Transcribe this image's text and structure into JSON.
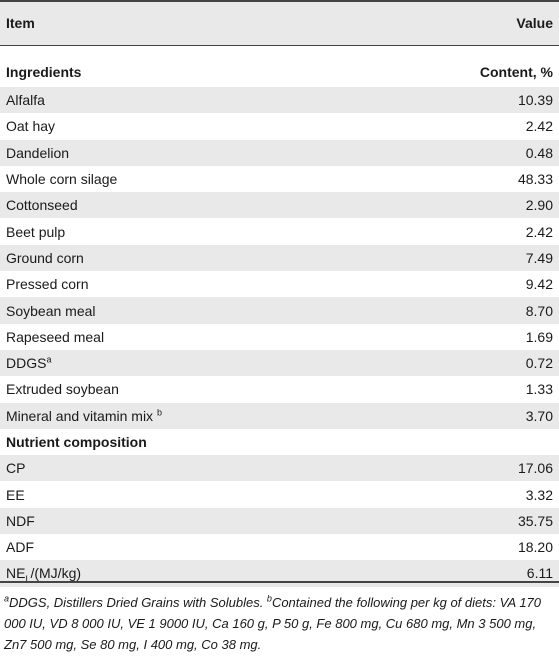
{
  "header": {
    "item": "Item",
    "value": "Value"
  },
  "sections": [
    {
      "title": "Ingredients",
      "value_header": "Content, %",
      "rows": [
        {
          "label": "Alfalfa",
          "value": "10.39"
        },
        {
          "label": "Oat hay",
          "value": "2.42"
        },
        {
          "label": "Dandelion",
          "value": "0.48"
        },
        {
          "label": "Whole corn silage",
          "value": "48.33"
        },
        {
          "label": "Cottonseed",
          "value": "2.90"
        },
        {
          "label": "Beet pulp",
          "value": "2.42"
        },
        {
          "label": "Ground corn",
          "value": "7.49"
        },
        {
          "label": "Pressed corn",
          "value": "9.42"
        },
        {
          "label": "Soybean meal",
          "value": "8.70"
        },
        {
          "label": "Rapeseed meal",
          "value": "1.69"
        },
        {
          "label": "DDGS",
          "sup": "a",
          "value": "0.72"
        },
        {
          "label": "Extruded soybean",
          "value": "1.33"
        },
        {
          "label": "Mineral and vitamin mix ",
          "sup": "b",
          "value": "3.70"
        }
      ]
    },
    {
      "title": "Nutrient composition",
      "rows": [
        {
          "label": "CP",
          "value": "17.06"
        },
        {
          "label": "EE",
          "value": "3.32"
        },
        {
          "label": "NDF",
          "value": "35.75"
        },
        {
          "label": "ADF",
          "value": "18.20"
        },
        {
          "label": "NE",
          "sub": "L",
          "label_suffix": "/(MJ/kg)",
          "value": "6.11"
        }
      ]
    }
  ],
  "footnotes": {
    "a_mark": "a",
    "a_text": "DDGS, Distillers Dried Grains with Solubles. ",
    "b_mark": "b",
    "b_text": "Contained the following per kg of diets: VA 170 000 IU, VD 8 000 IU, VE 1 9000 IU, Ca 160 g, P 50 g, Fe 800 mg, Cu 680 mg, Mn 3 500 mg, Zn7 500 mg, Se 80 mg, I 400 mg, Co 38 mg."
  }
}
